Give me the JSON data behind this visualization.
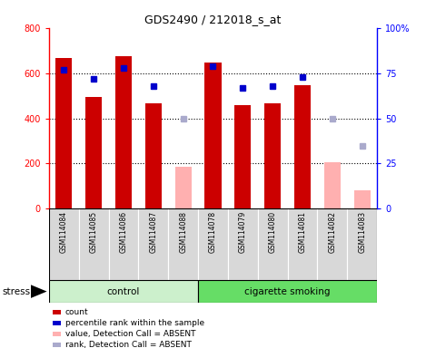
{
  "title": "GDS2490 / 212018_s_at",
  "samples": [
    "GSM114084",
    "GSM114085",
    "GSM114086",
    "GSM114087",
    "GSM114088",
    "GSM114078",
    "GSM114079",
    "GSM114080",
    "GSM114081",
    "GSM114082",
    "GSM114083"
  ],
  "count_values": [
    665,
    493,
    675,
    468,
    null,
    648,
    460,
    468,
    545,
    null,
    null
  ],
  "count_absent_values": [
    null,
    null,
    null,
    null,
    185,
    null,
    null,
    null,
    null,
    205,
    80
  ],
  "rank_values": [
    77,
    72,
    78,
    68,
    null,
    79,
    67,
    68,
    73,
    null,
    null
  ],
  "rank_absent_values": [
    null,
    null,
    null,
    null,
    50,
    null,
    null,
    null,
    null,
    50,
    35
  ],
  "ylim_left": [
    0,
    800
  ],
  "ylim_right": [
    0,
    100
  ],
  "yticks_left": [
    0,
    200,
    400,
    600,
    800
  ],
  "yticks_right": [
    0,
    25,
    50,
    75,
    100
  ],
  "yticklabels_right": [
    "0",
    "25",
    "50",
    "75",
    "100%"
  ],
  "bar_color_present": "#cc0000",
  "bar_color_absent": "#ffb0b0",
  "rank_color_present": "#0000cc",
  "rank_color_absent": "#aaaacc",
  "control_color": "#ccf0cc",
  "smoking_color": "#66dd66",
  "legend_items": [
    {
      "label": "count",
      "color": "#cc0000"
    },
    {
      "label": "percentile rank within the sample",
      "color": "#0000cc"
    },
    {
      "label": "value, Detection Call = ABSENT",
      "color": "#ffb0b0"
    },
    {
      "label": "rank, Detection Call = ABSENT",
      "color": "#aaaacc"
    }
  ],
  "group_label_control": "control",
  "group_label_smoking": "cigarette smoking",
  "stress_label": "stress",
  "n_control": 5,
  "n_smoking": 6
}
